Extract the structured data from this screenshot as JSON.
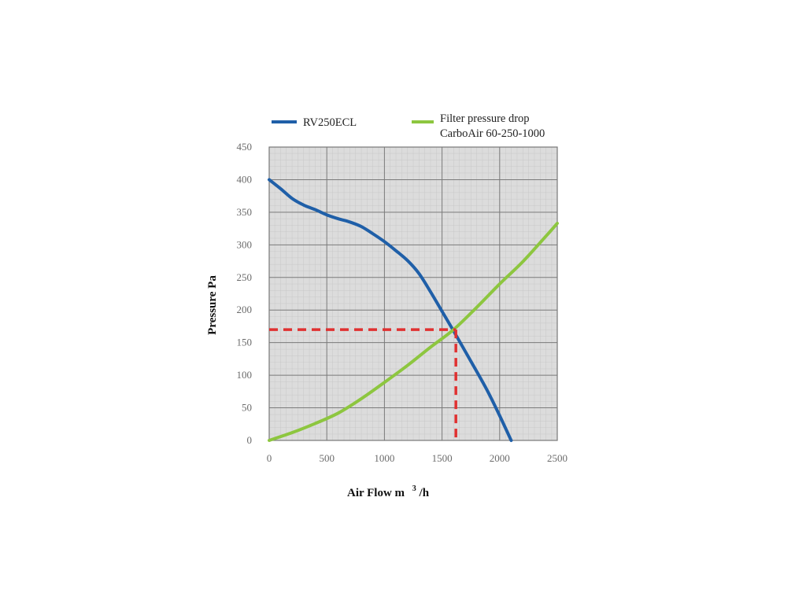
{
  "chart_data": {
    "type": "line",
    "xlabel_parts": [
      "Air Flow m",
      "3",
      "/h"
    ],
    "ylabel": "Pressure Pa",
    "xlim": [
      0,
      2500
    ],
    "ylim": [
      0,
      450
    ],
    "xticks": [
      "0",
      "500",
      "1000",
      "1500",
      "2000",
      "2500"
    ],
    "yticks": [
      "0",
      "50",
      "100",
      "150",
      "200",
      "250",
      "300",
      "350",
      "400",
      "450"
    ],
    "grid": true,
    "legend_position": "top",
    "series": [
      {
        "name": "RV250ECL",
        "color": "#1f5fa8",
        "x": [
          0,
          100,
          200,
          300,
          400,
          500,
          600,
          700,
          800,
          900,
          1000,
          1100,
          1200,
          1300,
          1400,
          1500,
          1600,
          1700,
          1800,
          1900,
          2000,
          2100
        ],
        "y": [
          400,
          386,
          371,
          361,
          354,
          346,
          340,
          335,
          328,
          317,
          305,
          291,
          276,
          256,
          228,
          198,
          168,
          137,
          106,
          74,
          38,
          0
        ]
      },
      {
        "name_lines": [
          "Filter pressure drop",
          "CarboAir 60-250-1000"
        ],
        "color": "#8dc63f",
        "x": [
          0,
          200,
          400,
          600,
          800,
          1000,
          1200,
          1400,
          1600,
          1800,
          2000,
          2200,
          2400,
          2500
        ],
        "y": [
          0,
          12,
          26,
          42,
          64,
          89,
          115,
          143,
          170,
          204,
          240,
          274,
          313,
          333
        ]
      }
    ],
    "operating_point": {
      "x": 1620,
      "y": 170,
      "color": "#e03030"
    }
  }
}
